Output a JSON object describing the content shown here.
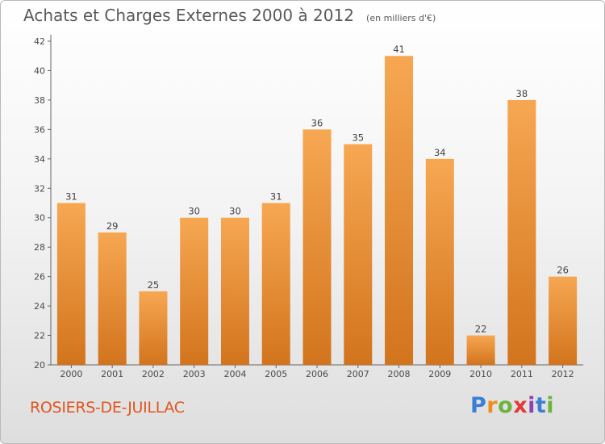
{
  "title": "Achats et Charges Externes 2000 à 2012",
  "unit": "(en milliers d'€)",
  "commune": "ROSIERS-DE-JUILLAC",
  "logo": {
    "letters": [
      "P",
      "r",
      "o",
      "x",
      "i",
      "t",
      "i"
    ],
    "colors": [
      "#3a7fd4",
      "#f08c1e",
      "#6cb33f",
      "#e53935",
      "#8e44ad",
      "#3a7fd4",
      "#6cb33f"
    ]
  },
  "colors": {
    "bar_top": "#f7a752",
    "bar_bottom": "#d2741d",
    "title": "#5a5a5a",
    "commune": "#e0561e"
  },
  "chart_data": {
    "type": "bar",
    "title": "Achats et Charges Externes 2000 à 2012",
    "subtitle": "(en milliers d'€)",
    "categories": [
      "2000",
      "2001",
      "2002",
      "2003",
      "2004",
      "2005",
      "2006",
      "2007",
      "2008",
      "2009",
      "2010",
      "2011",
      "2012"
    ],
    "values": [
      31,
      29,
      25,
      30,
      30,
      31,
      36,
      35,
      41,
      34,
      22,
      38,
      26
    ],
    "ylim": [
      20,
      42
    ],
    "yticks": [
      20,
      22,
      24,
      26,
      28,
      30,
      32,
      34,
      36,
      38,
      40,
      42
    ],
    "grid": false,
    "data_labels": true
  }
}
